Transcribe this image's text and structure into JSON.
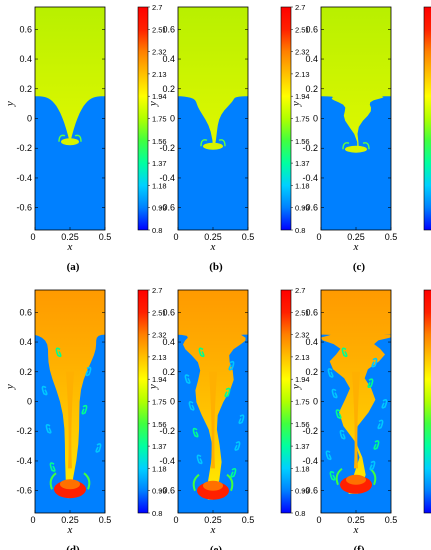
{
  "chart_data": {
    "type": "heatmap",
    "axes": {
      "xlabel": "x",
      "ylabel": "y",
      "xlim": [
        0,
        0.5
      ],
      "ylim": [
        -0.75,
        0.75
      ],
      "x_ticks": [
        "0",
        "0.25",
        "0.5"
      ],
      "y_ticks": [
        "0.6",
        "0.4",
        "0.2",
        "0",
        "-0.2",
        "-0.4",
        "-0.6"
      ]
    },
    "colorbar": {
      "min": 0.8,
      "max": 2.7,
      "ticks": [
        "2.7",
        "2.51",
        "2.32",
        "2.13",
        "1.94",
        "1.75",
        "1.56",
        "1.37",
        "1.18",
        "0.99",
        "0.8"
      ],
      "colormap": [
        "#0000ff",
        "#0080ff",
        "#00d0ff",
        "#00ffa0",
        "#40ff40",
        "#b0ff00",
        "#ffff00",
        "#ffc000",
        "#ff8000",
        "#ff2000",
        "#ff0000"
      ]
    },
    "panels": [
      {
        "label": "(a)",
        "upper_value": 2.05,
        "lower_value": 0.95,
        "front_y": -0.17,
        "detail": 0
      },
      {
        "label": "(b)",
        "upper_value": 2.05,
        "lower_value": 0.95,
        "front_y": -0.2,
        "detail": 1
      },
      {
        "label": "(c)",
        "upper_value": 2.05,
        "lower_value": 0.95,
        "front_y": -0.22,
        "detail": 2
      },
      {
        "label": "(d)",
        "upper_value": 2.4,
        "lower_value": 0.95,
        "front_y": -0.65,
        "detail": 1
      },
      {
        "label": "(e)",
        "upper_value": 2.4,
        "lower_value": 0.95,
        "front_y": -0.66,
        "detail": 2
      },
      {
        "label": "(f)",
        "upper_value": 2.4,
        "lower_value": 0.95,
        "front_y": -0.62,
        "detail": 3
      }
    ]
  }
}
